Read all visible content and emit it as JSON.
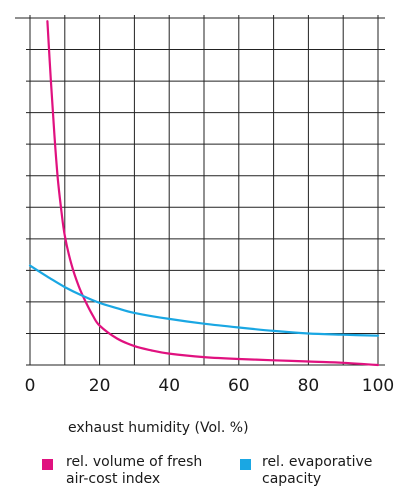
{
  "chart_data": {
    "type": "line",
    "xlabel": "exhaust humidity (Vol. %)",
    "ylabel": "",
    "xlim": [
      0,
      100
    ],
    "ylim": [
      0,
      11
    ],
    "x_ticks": [
      0,
      20,
      40,
      60,
      80,
      100
    ],
    "x_tick_labels": [
      "0",
      "20",
      "40",
      "60",
      "80",
      "100"
    ],
    "y_tick_labels_shown": false,
    "grid": true,
    "legend_position": "bottom",
    "series": [
      {
        "name": "rel. volume of fresh air-cost index",
        "color": "#e0117f",
        "x": [
          5,
          6,
          7,
          8,
          9,
          10,
          12,
          14,
          16,
          18,
          20,
          25,
          30,
          35,
          40,
          50,
          60,
          70,
          80,
          90,
          100
        ],
        "y": [
          10.9,
          9.0,
          7.3,
          5.9,
          4.9,
          4.1,
          3.15,
          2.5,
          2.0,
          1.58,
          1.25,
          0.84,
          0.6,
          0.46,
          0.36,
          0.25,
          0.19,
          0.15,
          0.11,
          0.07,
          0.0
        ]
      },
      {
        "name": "rel. evaporative capacity",
        "color": "#1aa7e3",
        "x": [
          0,
          5,
          10,
          15,
          20,
          25,
          30,
          40,
          50,
          60,
          70,
          80,
          90,
          100
        ],
        "y": [
          3.15,
          2.8,
          2.47,
          2.2,
          1.97,
          1.8,
          1.65,
          1.46,
          1.31,
          1.19,
          1.08,
          1.0,
          0.96,
          0.93
        ]
      }
    ]
  },
  "legend": {
    "items": [
      {
        "line1": "rel. volume of fresh",
        "line2": "air-cost index",
        "color": "#e0117f"
      },
      {
        "line1": "rel. evaporative",
        "line2": "capacity",
        "color": "#1aa7e3"
      }
    ]
  }
}
